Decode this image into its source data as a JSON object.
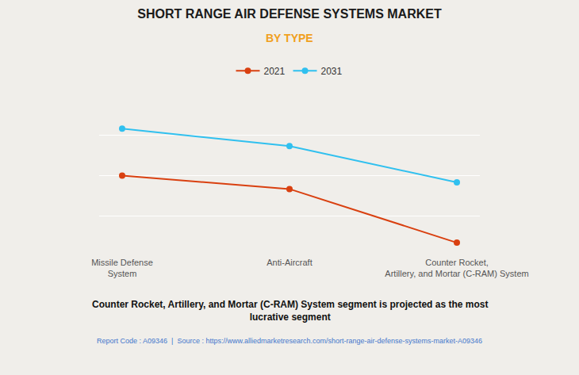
{
  "chart_data": {
    "type": "line",
    "title": "SHORT RANGE AIR DEFENSE SYSTEMS MARKET",
    "subtitle": "BY TYPE",
    "categories": [
      "Missile Defense\nSystem",
      "Anti-Aircraft",
      "Counter Rocket,\nArtillery, and Mortar (C-RAM) System"
    ],
    "series": [
      {
        "name": "2021",
        "color": "#D94010",
        "values": [
          6.0,
          5.0,
          1.0
        ],
        "marker": "circle"
      },
      {
        "name": "2031",
        "color": "#30C0EF",
        "values": [
          9.5,
          8.2,
          5.5
        ],
        "marker": "circle"
      }
    ],
    "ylim": [
      0,
      12
    ],
    "yticks": [
      0,
      3,
      6,
      9,
      12
    ],
    "grid": true,
    "tick_labels": "x",
    "legend": "top",
    "annotations": [
      "Counter Rocket, Artillery, and Mortar (C-RAM) System segment is projected as the most\nlucrative segment",
      "Report Code : A09346  |  Source : https://www.alliedmarketresearch.com/short-range-air-defense-systems-market-A09346"
    ]
  }
}
